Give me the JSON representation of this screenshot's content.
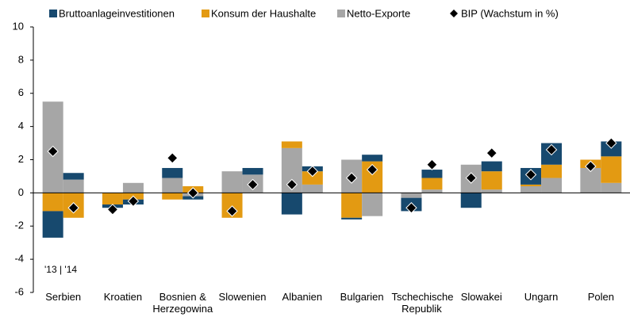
{
  "chart_data": {
    "type": "bar",
    "stacked": true,
    "annotation": "'13 | '14",
    "categories": [
      "Serbien",
      "Kroatien",
      "Bosnien & Herzegowina",
      "Slowenien",
      "Albanien",
      "Bulgarien",
      "Tschechische Republik",
      "Slowakei",
      "Ungarn",
      "Polen"
    ],
    "series": [
      {
        "name": "Bruttoanlageinvestitionen",
        "color": "#17496e",
        "values": [
          [
            -1.6,
            0.4
          ],
          [
            -0.2,
            -0.3
          ],
          [
            0.6,
            -0.2
          ],
          [
            0,
            0.4
          ],
          [
            -1.3,
            0.3
          ],
          [
            -0.1,
            0.4
          ],
          [
            -0.8,
            0.5
          ],
          [
            -0.9,
            0.6
          ],
          [
            1.0,
            1.3
          ],
          [
            0,
            0.9
          ]
        ]
      },
      {
        "name": "Konsum der Haushalte",
        "color": "#e39a12",
        "values": [
          [
            -1.1,
            -1.5
          ],
          [
            -0.7,
            -0.4
          ],
          [
            -0.4,
            0.4
          ],
          [
            -1.5,
            0
          ],
          [
            0.4,
            0.8
          ],
          [
            -1.5,
            1.9
          ],
          [
            0,
            0.7
          ],
          [
            0,
            1.1
          ],
          [
            0.1,
            0.8
          ],
          [
            0.5,
            1.6
          ]
        ]
      },
      {
        "name": "Netto-Exporte",
        "color": "#a6a6a6",
        "values": [
          [
            5.5,
            0.8
          ],
          [
            0,
            0.6
          ],
          [
            0.9,
            -0.2
          ],
          [
            1.3,
            1.1
          ],
          [
            2.7,
            0.5
          ],
          [
            2.0,
            -1.4
          ],
          [
            -0.3,
            0.2
          ],
          [
            1.7,
            0.2
          ],
          [
            0.4,
            0.9
          ],
          [
            1.5,
            0.6
          ]
        ]
      }
    ],
    "markers": {
      "name": "BIP (Wachstum in %)",
      "color": "#000000",
      "values": [
        [
          2.5,
          -0.9
        ],
        [
          -1.0,
          -0.5
        ],
        [
          2.1,
          0
        ],
        [
          -1.1,
          0.5
        ],
        [
          0.5,
          1.3
        ],
        [
          0.9,
          1.4
        ],
        [
          -0.9,
          1.7
        ],
        [
          0.9,
          2.4
        ],
        [
          1.1,
          2.6
        ],
        [
          1.6,
          3.0
        ]
      ]
    },
    "ylim": [
      -6,
      10
    ],
    "yticks": [
      -6,
      -4,
      -2,
      0,
      2,
      4,
      6,
      8,
      10
    ]
  }
}
